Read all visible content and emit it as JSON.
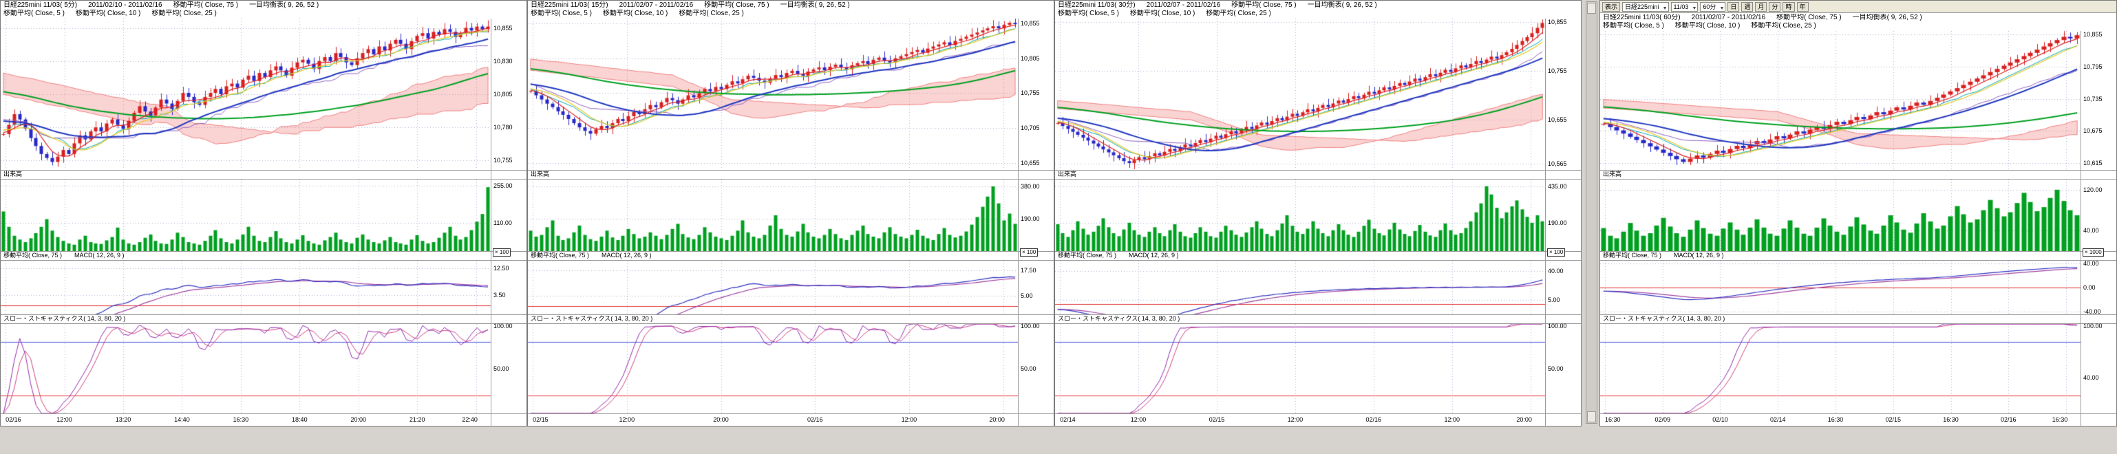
{
  "colors": {
    "app_background": "#d6d3ce",
    "panel_background": "#ffffff",
    "grid": "#a8aed0",
    "up_candle": "#d82020",
    "down_candle": "#2828c8",
    "ma5": "#e02020",
    "ma10": "#e8c820",
    "ma25": "#2038c0",
    "ma75": "#00a020",
    "tenkan": "#00a8b0",
    "kijun": "#9060c0",
    "cloud": "#f08080",
    "volume": "#00a020",
    "macd": "#3030c0",
    "macd_signal": "#a040a0",
    "stoch_k": "#9028b0",
    "stoch_d": "#d04080",
    "band_upper": "#4050e0",
    "band_lower": "#e03030"
  },
  "toolbar": {
    "menu_label": "表示",
    "selects": [
      {
        "name": "symbol-select",
        "value": "日経225mini"
      },
      {
        "name": "contract-select",
        "value": "11/03"
      },
      {
        "name": "timeframe-select",
        "value": "60分"
      }
    ],
    "buttons": [
      "日",
      "週",
      "月",
      "分",
      "時",
      "年"
    ]
  },
  "panels": [
    {
      "title1_instrument": "日経225mini 11/03( 5分)",
      "title1_range": "2011/02/10 - 2011/02/16",
      "title1_ind1": "移動平均( Close, 75 )",
      "title1_ind2": "一目均衡表( 9, 26, 52 )",
      "title2_items": [
        "移動平均( Close, 5 )",
        "移動平均( Close, 10 )",
        "移動平均( Close, 25 )"
      ],
      "volume_title": "出来高",
      "macd_title_ma": "移動平均( Close, 75 )",
      "macd_title": "MACD( 12, 26, 9 )",
      "stoch_title": "スロー・ストキャスティクス( 14, 3, 80, 20 )",
      "multiplier": "× 100",
      "has_toolbar": false,
      "axes": {
        "price_labels": [
          "10,855",
          "10,830",
          "10,805",
          "10,780",
          "10,755"
        ],
        "price_ylim": [
          10748,
          10862
        ],
        "volume_labels": [
          "255.00",
          "110.00"
        ],
        "volume_max": 280,
        "macd_labels": [
          "12.50",
          "3.50"
        ],
        "macd_ylim": [
          -3,
          15
        ],
        "stoch_labels": [
          "100.00",
          "50.00"
        ],
        "x_labels": [
          "02/16",
          "12:00",
          "13:20",
          "14:40",
          "16:30",
          "18:40",
          "20:00",
          "21:20",
          "22:40"
        ]
      },
      "chart_data": {
        "type": "candlestick",
        "timeframe": "5分",
        "overlays": [
          "移動平均(5)",
          "移動平均(10)",
          "移動平均(25)",
          "移動平均(75)",
          "一目均衡表(9,26,52)"
        ],
        "lower_indicators": [
          "出来高",
          "MACD(12,26,9)",
          "スロー・ストキャスティクス(14,3,80,20)"
        ],
        "close": [
          10775,
          10782,
          10790,
          10786,
          10779,
          10772,
          10766,
          10760,
          10757,
          10754,
          10758,
          10763,
          10760,
          10768,
          10774,
          10771,
          10777,
          10780,
          10777,
          10783,
          10786,
          10782,
          10779,
          10785,
          10791,
          10796,
          10792,
          10789,
          10795,
          10801,
          10798,
          10794,
          10800,
          10806,
          10803,
          10799,
          10797,
          10803,
          10806,
          10809,
          10805,
          10811,
          10813,
          10810,
          10816,
          10819,
          10815,
          10821,
          10818,
          10823,
          10826,
          10823,
          10819,
          10825,
          10829,
          10831,
          10828,
          10824,
          10830,
          10833,
          10830,
          10836,
          10833,
          10829,
          10827,
          10832,
          10836,
          10839,
          10835,
          10841,
          10838,
          10843,
          10846,
          10843,
          10839,
          10845,
          10849,
          10851,
          10847,
          10852,
          10850,
          10854,
          10852,
          10848,
          10851,
          10855,
          10853,
          10856,
          10854,
          10856
        ],
        "volume": [
          155,
          95,
          60,
          45,
          35,
          50,
          70,
          95,
          125,
          80,
          55,
          40,
          30,
          25,
          45,
          60,
          35,
          30,
          28,
          42,
          55,
          92,
          45,
          30,
          25,
          35,
          52,
          65,
          40,
          30,
          28,
          45,
          72,
          55,
          35,
          30,
          25,
          40,
          60,
          82,
          50,
          35,
          30,
          45,
          65,
          95,
          60,
          40,
          35,
          55,
          78,
          50,
          35,
          30,
          45,
          62,
          40,
          30,
          25,
          42,
          55,
          72,
          45,
          35,
          30,
          52,
          65,
          45,
          35,
          30,
          42,
          55,
          35,
          30,
          25,
          45,
          62,
          40,
          30,
          35,
          52,
          72,
          95,
          60,
          45,
          55,
          82,
          115,
          145,
          250
        ]
      }
    },
    {
      "title1_instrument": "日経225mini 11/03( 15分)",
      "title1_range": "2011/02/07 - 2011/02/16",
      "title1_ind1": "移動平均( Close, 75 )",
      "title1_ind2": "一目均衡表( 9, 26, 52 )",
      "title2_items": [
        "移動平均( Close, 5 )",
        "移動平均( Close, 10 )",
        "移動平均( Close, 25 )"
      ],
      "volume_title": "出来高",
      "macd_title_ma": "移動平均( Close, 75 )",
      "macd_title": "MACD( 12, 26, 9 )",
      "stoch_title": "スロー・ストキャスティクス( 14, 3, 80, 20 )",
      "multiplier": "× 100",
      "has_toolbar": false,
      "axes": {
        "price_labels": [
          "10,855",
          "10,805",
          "10,755",
          "10,705",
          "10,655"
        ],
        "price_ylim": [
          10645,
          10862
        ],
        "volume_labels": [
          "380.00",
          "190.00"
        ],
        "volume_max": 420,
        "macd_labels": [
          "17.50",
          "5.00"
        ],
        "macd_ylim": [
          -4,
          22
        ],
        "stoch_labels": [
          "100.00",
          "50.00"
        ],
        "x_labels": [
          "02/15",
          "12:00",
          "20:00",
          "02/16",
          "12:00",
          "20:00"
        ]
      },
      "chart_data": {
        "type": "candlestick",
        "timeframe": "15分",
        "overlays": [
          "移動平均(5)",
          "移動平均(10)",
          "移動平均(25)",
          "移動平均(75)",
          "一目均衡表(9,26,52)"
        ],
        "lower_indicators": [
          "出来高",
          "MACD(12,26,9)",
          "スロー・ストキャスティクス(14,3,80,20)"
        ],
        "close": [
          10758,
          10752,
          10746,
          10740,
          10735,
          10729,
          10724,
          10718,
          10712,
          10706,
          10701,
          10697,
          10703,
          10708,
          10705,
          10712,
          10718,
          10715,
          10722,
          10728,
          10725,
          10732,
          10738,
          10735,
          10742,
          10748,
          10745,
          10740,
          10746,
          10752,
          10749,
          10755,
          10761,
          10758,
          10764,
          10761,
          10767,
          10772,
          10769,
          10775,
          10780,
          10777,
          10773,
          10770,
          10776,
          10781,
          10778,
          10784,
          10787,
          10783,
          10780,
          10786,
          10789,
          10792,
          10788,
          10793,
          10796,
          10792,
          10789,
          10795,
          10798,
          10801,
          10797,
          10803,
          10806,
          10802,
          10799,
          10805,
          10808,
          10811,
          10814,
          10817,
          10813,
          10819,
          10822,
          10825,
          10828,
          10824,
          10830,
          10833,
          10836,
          10839,
          10842,
          10845,
          10848,
          10851,
          10848,
          10853,
          10856,
          10854
        ],
        "volume": [
          120,
          85,
          95,
          140,
          180,
          90,
          65,
          75,
          110,
          150,
          95,
          70,
          60,
          85,
          120,
          80,
          65,
          90,
          130,
          100,
          75,
          85,
          110,
          90,
          70,
          95,
          130,
          160,
          100,
          80,
          70,
          95,
          140,
          110,
          85,
          75,
          65,
          90,
          120,
          180,
          110,
          85,
          75,
          95,
          150,
          210,
          130,
          95,
          85,
          115,
          160,
          110,
          85,
          75,
          95,
          130,
          100,
          75,
          65,
          95,
          120,
          150,
          100,
          85,
          75,
          110,
          140,
          100,
          85,
          75,
          95,
          125,
          90,
          75,
          65,
          100,
          135,
          95,
          80,
          90,
          115,
          155,
          200,
          260,
          320,
          380,
          280,
          180,
          220,
          160
        ]
      }
    },
    {
      "title1_instrument": "日経225mini 11/03( 30分)",
      "title1_range": "2011/02/07 - 2011/02/16",
      "title1_ind1": "移動平均( Close, 75 )",
      "title1_ind2": "一目均衡表( 9, 26, 52 )",
      "title2_items": [
        "移動平均( Close, 5 )",
        "移動平均( Close, 10 )",
        "移動平均( Close, 25 )"
      ],
      "volume_title": "出来高",
      "macd_title_ma": "移動平均( Close, 75 )",
      "macd_title": "MACD( 12, 26, 9 )",
      "stoch_title": "スロー・ストキャスティクス( 14, 3, 80, 20 )",
      "multiplier": "× 100",
      "has_toolbar": false,
      "axes": {
        "price_labels": [
          "10,855",
          "10,755",
          "10,655",
          "10,565"
        ],
        "price_ylim": [
          10552,
          10862
        ],
        "volume_labels": [
          "435.00",
          "190.00"
        ],
        "volume_max": 480,
        "macd_labels": [
          "40.00",
          "5.00"
        ],
        "macd_ylim": [
          -12,
          52
        ],
        "stoch_labels": [
          "100.00",
          "50.00"
        ],
        "x_labels": [
          "02/14",
          "12:00",
          "02/15",
          "12:00",
          "02/16",
          "12:00",
          "20:00"
        ]
      },
      "chart_data": {
        "type": "candlestick",
        "timeframe": "30分",
        "overlays": [
          "移動平均(5)",
          "移動平均(10)",
          "移動平均(25)",
          "移動平均(75)",
          "一目均衡表(9,26,52)"
        ],
        "lower_indicators": [
          "出来高",
          "MACD(12,26,9)",
          "スロー・ストキャスティクス(14,3,80,20)"
        ],
        "close": [
          10648,
          10642,
          10636,
          10630,
          10624,
          10618,
          10612,
          10606,
          10600,
          10594,
          10588,
          10582,
          10576,
          10570,
          10566,
          10572,
          10578,
          10574,
          10580,
          10586,
          10582,
          10589,
          10595,
          10591,
          10598,
          10604,
          10600,
          10607,
          10613,
          10609,
          10616,
          10622,
          10618,
          10625,
          10631,
          10627,
          10634,
          10640,
          10636,
          10643,
          10649,
          10645,
          10652,
          10658,
          10654,
          10661,
          10667,
          10663,
          10670,
          10676,
          10672,
          10679,
          10685,
          10681,
          10688,
          10694,
          10690,
          10697,
          10703,
          10699,
          10706,
          10712,
          10708,
          10715,
          10721,
          10717,
          10724,
          10730,
          10726,
          10733,
          10739,
          10735,
          10742,
          10748,
          10744,
          10751,
          10757,
          10753,
          10760,
          10766,
          10762,
          10769,
          10775,
          10771,
          10778,
          10784,
          10780,
          10787,
          10793,
          10800,
          10808,
          10816,
          10824,
          10832,
          10843,
          10853
        ],
        "volume": [
          180,
          120,
          95,
          140,
          200,
          150,
          110,
          130,
          170,
          220,
          160,
          120,
          100,
          145,
          190,
          140,
          110,
          95,
          130,
          160,
          120,
          100,
          140,
          180,
          130,
          100,
          90,
          120,
          160,
          130,
          100,
          90,
          130,
          170,
          140,
          110,
          95,
          125,
          160,
          200,
          150,
          115,
          100,
          140,
          185,
          240,
          170,
          130,
          115,
          150,
          200,
          150,
          120,
          100,
          140,
          180,
          140,
          110,
          95,
          130,
          170,
          210,
          150,
          120,
          105,
          145,
          190,
          145,
          115,
          100,
          135,
          175,
          130,
          105,
          95,
          140,
          185,
          140,
          110,
          120,
          155,
          200,
          260,
          320,
          435,
          380,
          290,
          220,
          260,
          300,
          340,
          280,
          230,
          190,
          240,
          200
        ]
      }
    },
    {
      "title1_instrument": "日経225mini 11/03( 60分)",
      "title1_range": "2011/02/07 - 2011/02/16",
      "title1_ind1": "移動平均( Close, 75 )",
      "title1_ind2": "一目均衡表( 9, 26, 52 )",
      "title2_items": [
        "移動平均( Close, 5 )",
        "移動平均( Close, 10 )",
        "移動平均( Close, 25 )"
      ],
      "volume_title": "出来高",
      "macd_title_ma": "移動平均( Close, 75 )",
      "macd_title": "MACD( 12, 26, 9 )",
      "stoch_title": "スロー・ストキャスティクス( 14, 3, 80, 20 )",
      "multiplier": "× 1000",
      "has_toolbar": true,
      "axes": {
        "price_labels": [
          "10,855",
          "10,795",
          "10,735",
          "10,675",
          "10,615"
        ],
        "price_ylim": [
          10602,
          10862
        ],
        "volume_labels": [
          "120.00",
          "40.00"
        ],
        "volume_max": 140,
        "macd_labels": [
          "40.00",
          "0.00",
          "-40.00"
        ],
        "macd_ylim": [
          -45,
          45
        ],
        "stoch_labels": [
          "100.00",
          "40.00"
        ],
        "x_labels": [
          "16:30",
          "02/09",
          "02/10",
          "02/14",
          "16:30",
          "02/15",
          "16:30",
          "02/16",
          "16:30"
        ]
      },
      "chart_data": {
        "type": "candlestick",
        "timeframe": "60分",
        "overlays": [
          "移動平均(5)",
          "移動平均(10)",
          "移動平均(25)",
          "移動平均(75)",
          "一目均衡表(9,26,52)"
        ],
        "lower_indicators": [
          "出来高",
          "MACD(12,26,9)",
          "スロー・ストキャスティクス(14,3,80,20)"
        ],
        "close": [
          10688,
          10682,
          10676,
          10670,
          10664,
          10658,
          10652,
          10646,
          10640,
          10634,
          10628,
          10622,
          10617,
          10623,
          10629,
          10625,
          10632,
          10638,
          10634,
          10641,
          10647,
          10643,
          10650,
          10656,
          10652,
          10659,
          10665,
          10661,
          10668,
          10674,
          10670,
          10677,
          10683,
          10679,
          10686,
          10692,
          10688,
          10695,
          10701,
          10697,
          10704,
          10710,
          10706,
          10713,
          10719,
          10715,
          10722,
          10728,
          10724,
          10731,
          10737,
          10743,
          10749,
          10755,
          10761,
          10767,
          10773,
          10779,
          10785,
          10791,
          10797,
          10803,
          10809,
          10815,
          10821,
          10827,
          10833,
          10839,
          10845,
          10851,
          10848,
          10854
        ],
        "volume": [
          45,
          30,
          25,
          38,
          55,
          40,
          30,
          35,
          50,
          65,
          48,
          35,
          28,
          42,
          60,
          45,
          34,
          30,
          44,
          56,
          42,
          32,
          46,
          62,
          46,
          34,
          30,
          44,
          60,
          46,
          34,
          30,
          46,
          64,
          50,
          38,
          32,
          48,
          66,
          52,
          40,
          34,
          50,
          70,
          56,
          42,
          36,
          54,
          74,
          58,
          44,
          50,
          68,
          88,
          72,
          56,
          62,
          80,
          100,
          84,
          68,
          76,
          94,
          114,
          96,
          78,
          86,
          104,
          120,
          98,
          80,
          70
        ]
      }
    }
  ]
}
